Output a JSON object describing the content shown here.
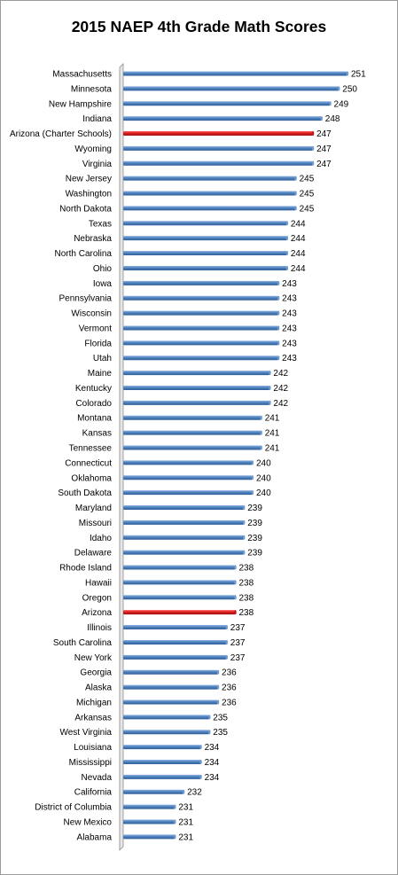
{
  "chart_data": {
    "type": "bar",
    "orientation": "horizontal",
    "title": "2015 NAEP 4th Grade Math Scores",
    "xlabel": "",
    "ylabel": "",
    "grid": false,
    "legend": "none",
    "colors": {
      "default": "#4f81bd",
      "highlight": "#d81e1e"
    },
    "categories": [
      "Massachusetts",
      "Minnesota",
      "New Hampshire",
      "Indiana",
      "Arizona (Charter Schools)",
      "Wyoming",
      "Virginia",
      "New Jersey",
      "Washington",
      "North Dakota",
      "Texas",
      "Nebraska",
      "North Carolina",
      "Ohio",
      "Iowa",
      "Pennsylvania",
      "Wisconsin",
      "Vermont",
      "Florida",
      "Utah",
      "Maine",
      "Kentucky",
      "Colorado",
      "Montana",
      "Kansas",
      "Tennessee",
      "Connecticut",
      "Oklahoma",
      "South Dakota",
      "Maryland",
      "Missouri",
      "Idaho",
      "Delaware",
      "Rhode Island",
      "Hawaii",
      "Oregon",
      "Arizona",
      "Illinois",
      "South Carolina",
      "New York",
      "Georgia",
      "Alaska",
      "Michigan",
      "Arkansas",
      "West Virginia",
      "Louisiana",
      "Mississippi",
      "Nevada",
      "California",
      "District of Columbia",
      "New Mexico",
      "Alabama"
    ],
    "values": [
      251,
      250,
      249,
      248,
      247,
      247,
      247,
      245,
      245,
      245,
      244,
      244,
      244,
      244,
      243,
      243,
      243,
      243,
      243,
      243,
      242,
      242,
      242,
      241,
      241,
      241,
      240,
      240,
      240,
      239,
      239,
      239,
      239,
      238,
      238,
      238,
      238,
      237,
      237,
      237,
      236,
      236,
      236,
      235,
      235,
      234,
      234,
      234,
      232,
      231,
      231,
      231
    ],
    "highlighted": [
      "Arizona (Charter Schools)",
      "Arizona"
    ]
  }
}
